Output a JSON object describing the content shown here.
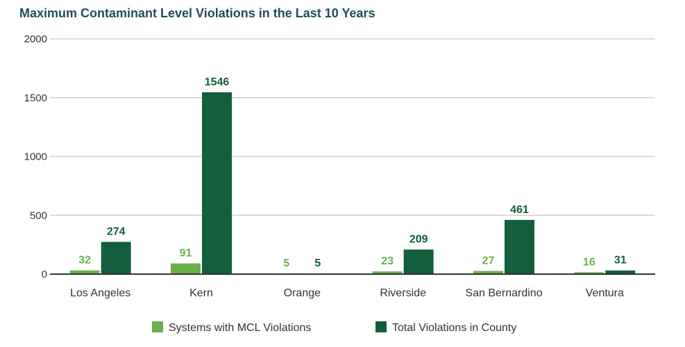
{
  "chart_data": {
    "type": "bar",
    "title": "Maximum Contaminant Level Violations in the Last 10 Years",
    "xlabel": "",
    "ylabel": "",
    "ylim": [
      0,
      2000
    ],
    "yticks": [
      "0",
      "500",
      "1000",
      "1500",
      "2000"
    ],
    "grid": true,
    "legend_position": "bottom",
    "categories": [
      "Los Angeles",
      "Kern",
      "Orange",
      "Riverside",
      "San Bernardino",
      "Ventura"
    ],
    "series": [
      {
        "name": "Systems with MCL Violations",
        "values": [
          32,
          91,
          5,
          23,
          27,
          16
        ],
        "color": "#6ab04c"
      },
      {
        "name": "Total Violations in County",
        "values": [
          274,
          1546,
          5,
          209,
          461,
          31
        ],
        "color": "#135e3c"
      }
    ]
  }
}
